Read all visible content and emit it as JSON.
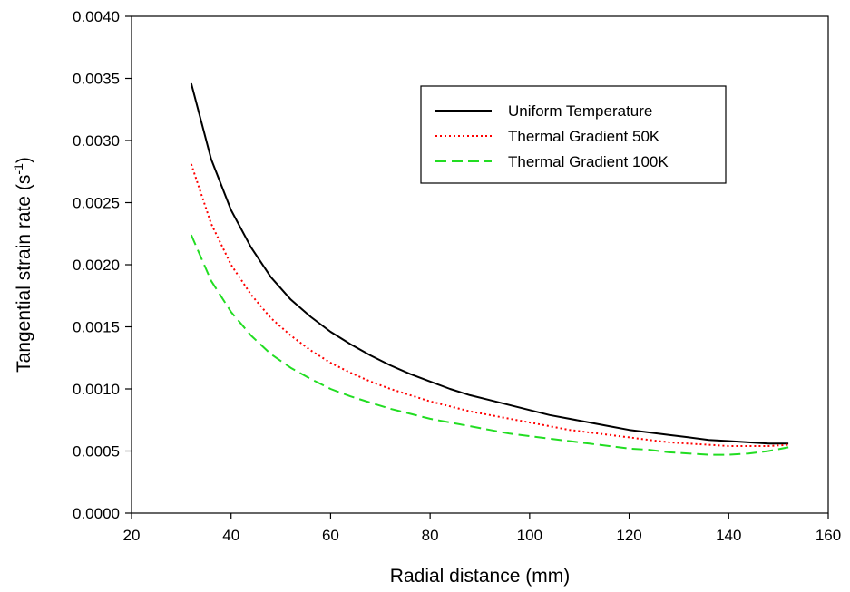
{
  "chart_data": {
    "type": "line",
    "xlabel": "Radial distance (mm)",
    "ylabel": {
      "main": "Tangential strain rate (s",
      "superscript": "-1",
      "close": ")"
    },
    "xlim": [
      20,
      160
    ],
    "ylim": [
      0.0,
      0.004
    ],
    "x_ticks": [
      "20",
      "40",
      "60",
      "80",
      "100",
      "120",
      "140",
      "160"
    ],
    "y_ticks": [
      "0.0000",
      "0.0005",
      "0.0010",
      "0.0015",
      "0.0020",
      "0.0025",
      "0.0030",
      "0.0035",
      "0.0040"
    ],
    "grid": false,
    "legend_position": "top-right",
    "x": [
      32,
      36,
      40,
      44,
      48,
      52,
      56,
      60,
      64,
      68,
      72,
      76,
      80,
      84,
      88,
      92,
      96,
      100,
      104,
      108,
      112,
      116,
      120,
      124,
      128,
      132,
      136,
      140,
      144,
      148,
      152
    ],
    "series": [
      {
        "name": "Uniform Temperature",
        "color": "#000000",
        "style": "solid",
        "values": [
          0.00346,
          0.00285,
          0.00244,
          0.00214,
          0.0019,
          0.00172,
          0.00158,
          0.00146,
          0.00136,
          0.00127,
          0.00119,
          0.00112,
          0.00106,
          0.001,
          0.00095,
          0.00091,
          0.00087,
          0.00083,
          0.00079,
          0.00076,
          0.00073,
          0.0007,
          0.00067,
          0.00065,
          0.00063,
          0.00061,
          0.00059,
          0.00058,
          0.00057,
          0.00056,
          0.00056
        ]
      },
      {
        "name": "Thermal Gradient 50K",
        "color": "#ff0000",
        "style": "dotted",
        "values": [
          0.00281,
          0.00233,
          0.002,
          0.00176,
          0.00157,
          0.00143,
          0.00131,
          0.00121,
          0.00113,
          0.00106,
          0.001,
          0.00095,
          0.0009,
          0.00086,
          0.00082,
          0.00079,
          0.00076,
          0.00073,
          0.0007,
          0.00067,
          0.00065,
          0.00063,
          0.00061,
          0.00059,
          0.00057,
          0.00056,
          0.00055,
          0.00054,
          0.00054,
          0.00054,
          0.00055
        ]
      },
      {
        "name": "Thermal Gradient 100K",
        "color": "#22dd22",
        "style": "dashed",
        "values": [
          0.00224,
          0.00187,
          0.00162,
          0.00143,
          0.00128,
          0.00117,
          0.00108,
          0.001,
          0.00094,
          0.00089,
          0.00084,
          0.0008,
          0.00076,
          0.00073,
          0.0007,
          0.00067,
          0.00064,
          0.00062,
          0.0006,
          0.00058,
          0.00056,
          0.00054,
          0.00052,
          0.00051,
          0.00049,
          0.00048,
          0.00047,
          0.00047,
          0.00048,
          0.0005,
          0.00053
        ]
      }
    ]
  }
}
